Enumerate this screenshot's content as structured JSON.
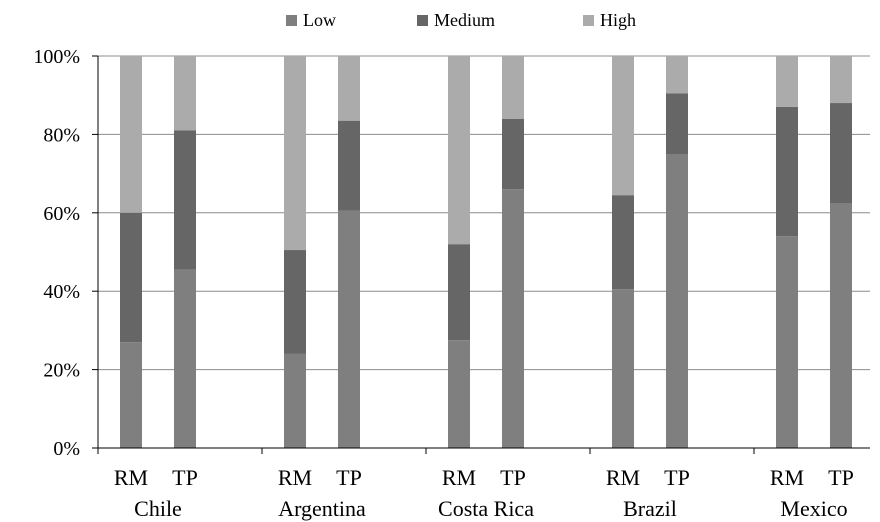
{
  "chart_data": {
    "type": "bar",
    "stacked": true,
    "percent": true,
    "title": "",
    "xlabel": "",
    "ylabel": "",
    "ylim": [
      0,
      100
    ],
    "yticks": [
      "0%",
      "20%",
      "40%",
      "60%",
      "80%",
      "100%"
    ],
    "grid": true,
    "legend_position": "top",
    "groups": [
      {
        "country": "Chile",
        "bars": [
          "RM",
          "TP"
        ]
      },
      {
        "country": "Argentina",
        "bars": [
          "RM",
          "TP"
        ]
      },
      {
        "country": "Costa Rica",
        "bars": [
          "RM",
          "TP"
        ]
      },
      {
        "country": "Brazil",
        "bars": [
          "RM",
          "TP"
        ]
      },
      {
        "country": "Mexico",
        "bars": [
          "RM",
          "TP"
        ]
      }
    ],
    "categories": [
      "Chile RM",
      "Chile TP",
      "Argentina RM",
      "Argentina TP",
      "Costa Rica RM",
      "Costa Rica TP",
      "Brazil RM",
      "Brazil TP",
      "Mexico RM",
      "Mexico TP"
    ],
    "series": [
      {
        "name": "Low",
        "color": "#7f7f7f",
        "values": [
          27,
          45.5,
          24,
          60.5,
          27.5,
          66,
          40.5,
          75,
          54,
          62.5
        ]
      },
      {
        "name": "Medium",
        "color": "#666666",
        "values": [
          33,
          35.5,
          26.5,
          23,
          24.5,
          18,
          24,
          15.5,
          33,
          25.5
        ]
      },
      {
        "name": "High",
        "color": "#ababab",
        "values": [
          40,
          19,
          49.5,
          16.5,
          48,
          16,
          35.5,
          9.5,
          13,
          12
        ]
      }
    ]
  }
}
